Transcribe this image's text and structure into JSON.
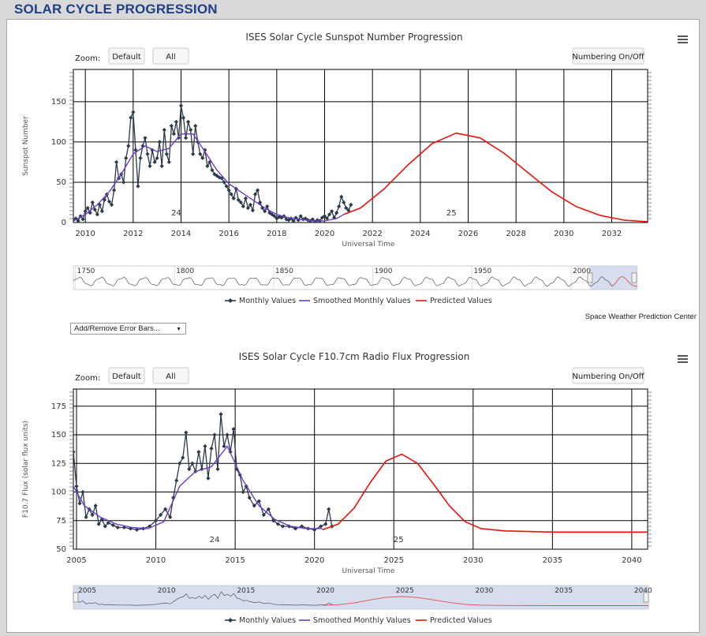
{
  "page": {
    "title": "SOLAR CYCLE PROGRESSION"
  },
  "controls": {
    "zoom_label": "Zoom:",
    "zoom_default": "Default",
    "zoom_all": "All",
    "numbering_toggle": "Numbering On/Off",
    "error_bars_select": "Add/Remove Error Bars...",
    "menu_icon": "hamburger-menu-icon"
  },
  "credit": "Space Weather Prediction Center",
  "legend": {
    "monthly": "Monthly Values",
    "smoothed": "Smoothed Monthly Values",
    "predicted": "Predicted Values"
  },
  "colors": {
    "monthly": "#2b3a4a",
    "smoothed": "#6a3ccf",
    "predicted": "#e8130b",
    "navigator_mask": "#c7d2ea"
  },
  "chart_data": [
    {
      "type": "line",
      "title": "ISES Solar Cycle Sunspot Number Progression",
      "xlabel": "Universal Time",
      "ylabel": "Sunspot Number",
      "xlim": [
        2009.5,
        2033.5
      ],
      "ylim": [
        0,
        190
      ],
      "x_ticks": [
        2010,
        2012,
        2014,
        2016,
        2018,
        2020,
        2022,
        2024,
        2026,
        2028,
        2030,
        2032
      ],
      "y_ticks": [
        0,
        50,
        100,
        150
      ],
      "cycle_labels": [
        {
          "x": 2013.8,
          "text": "24"
        },
        {
          "x": 2025.3,
          "text": "25"
        }
      ],
      "series": [
        {
          "name": "Monthly Values",
          "x": [
            2009.5,
            2009.6,
            2009.7,
            2009.8,
            2009.9,
            2010.0,
            2010.1,
            2010.2,
            2010.3,
            2010.4,
            2010.5,
            2010.6,
            2010.7,
            2010.8,
            2010.9,
            2011.0,
            2011.1,
            2011.2,
            2011.3,
            2011.4,
            2011.5,
            2011.6,
            2011.7,
            2011.8,
            2011.9,
            2012.0,
            2012.1,
            2012.2,
            2012.3,
            2012.4,
            2012.5,
            2012.6,
            2012.7,
            2012.8,
            2012.9,
            2013.0,
            2013.1,
            2013.2,
            2013.3,
            2013.4,
            2013.5,
            2013.6,
            2013.7,
            2013.8,
            2013.9,
            2014.0,
            2014.1,
            2014.2,
            2014.3,
            2014.4,
            2014.5,
            2014.6,
            2014.7,
            2014.8,
            2014.9,
            2015.0,
            2015.1,
            2015.2,
            2015.3,
            2015.4,
            2015.5,
            2015.6,
            2015.7,
            2015.8,
            2015.9,
            2016.0,
            2016.1,
            2016.2,
            2016.3,
            2016.4,
            2016.5,
            2016.6,
            2016.7,
            2016.8,
            2016.9,
            2017.0,
            2017.1,
            2017.2,
            2017.3,
            2017.4,
            2017.5,
            2017.6,
            2017.7,
            2017.8,
            2017.9,
            2018.0,
            2018.1,
            2018.2,
            2018.3,
            2018.4,
            2018.5,
            2018.6,
            2018.7,
            2018.8,
            2018.9,
            2019.0,
            2019.1,
            2019.2,
            2019.3,
            2019.4,
            2019.5,
            2019.6,
            2019.7,
            2019.8,
            2019.9,
            2020.0,
            2020.1,
            2020.2,
            2020.3,
            2020.4,
            2020.5,
            2020.6,
            2020.7,
            2020.8,
            2020.9,
            2021.0,
            2021.1
          ],
          "y": [
            3,
            5,
            2,
            8,
            4,
            14,
            18,
            12,
            25,
            16,
            10,
            22,
            14,
            28,
            35,
            26,
            22,
            40,
            75,
            55,
            60,
            50,
            80,
            95,
            130,
            137,
            90,
            45,
            80,
            95,
            105,
            85,
            70,
            90,
            75,
            80,
            100,
            70,
            115,
            85,
            75,
            120,
            110,
            125,
            105,
            145,
            130,
            105,
            125,
            115,
            85,
            120,
            100,
            85,
            80,
            90,
            70,
            75,
            65,
            60,
            58,
            56,
            55,
            50,
            45,
            40,
            35,
            30,
            42,
            28,
            25,
            20,
            30,
            18,
            22,
            15,
            35,
            40,
            25,
            18,
            14,
            20,
            12,
            10,
            8,
            5,
            7,
            6,
            8,
            4,
            3,
            5,
            2,
            6,
            3,
            8,
            4,
            5,
            3,
            2,
            4,
            1,
            3,
            2,
            6,
            8,
            5,
            10,
            14,
            6,
            12,
            20,
            32,
            25,
            18,
            15,
            22
          ]
        },
        {
          "name": "Smoothed Monthly Values",
          "x": [
            2009.5,
            2010.0,
            2010.5,
            2011.0,
            2011.5,
            2012.0,
            2012.5,
            2013.0,
            2013.5,
            2014.0,
            2014.5,
            2015.0,
            2015.5,
            2016.0,
            2016.5,
            2017.0,
            2017.5,
            2018.0,
            2018.5,
            2019.0,
            2019.5,
            2020.0,
            2020.5,
            2020.8
          ],
          "y": [
            2,
            10,
            22,
            38,
            60,
            85,
            95,
            88,
            92,
            110,
            110,
            88,
            65,
            48,
            38,
            28,
            18,
            10,
            6,
            4,
            2,
            2,
            5,
            10
          ]
        },
        {
          "name": "Predicted Values",
          "x": [
            2020.8,
            2021.5,
            2022.5,
            2023.5,
            2024.5,
            2025.5,
            2026.5,
            2027.5,
            2028.5,
            2029.5,
            2030.5,
            2031.5,
            2032.5,
            2033.5
          ],
          "y": [
            10,
            18,
            42,
            72,
            98,
            111,
            105,
            86,
            62,
            38,
            20,
            9,
            3,
            1
          ]
        }
      ],
      "navigator": {
        "ticks": [
          1750,
          1800,
          1850,
          1900,
          1950,
          2000
        ],
        "range": [
          1749,
          2033
        ],
        "selected": [
          2009.5,
          2033.5
        ]
      }
    },
    {
      "type": "line",
      "title": "ISES Solar Cycle F10.7cm Radio Flux Progression",
      "xlabel": "Universal Time",
      "ylabel": "F10.7 Flux (solar flux units)",
      "xlim": [
        2004.8,
        2041
      ],
      "ylim": [
        50,
        190
      ],
      "x_ticks": [
        2005,
        2010,
        2015,
        2020,
        2025,
        2030,
        2035,
        2040
      ],
      "y_ticks": [
        50,
        75,
        100,
        125,
        150,
        175
      ],
      "cycle_labels": [
        {
          "x": 2013.7,
          "text": "24"
        },
        {
          "x": 2025.3,
          "text": "25"
        }
      ],
      "series": [
        {
          "name": "Monthly Values",
          "x": [
            2004.8,
            2005.0,
            2005.2,
            2005.4,
            2005.6,
            2005.8,
            2006.0,
            2006.2,
            2006.4,
            2006.6,
            2006.8,
            2007.0,
            2007.3,
            2007.6,
            2008.0,
            2008.4,
            2008.8,
            2009.2,
            2009.6,
            2010.0,
            2010.3,
            2010.6,
            2010.9,
            2011.1,
            2011.3,
            2011.5,
            2011.7,
            2011.9,
            2012.1,
            2012.3,
            2012.5,
            2012.7,
            2012.9,
            2013.1,
            2013.3,
            2013.5,
            2013.7,
            2013.9,
            2014.1,
            2014.3,
            2014.5,
            2014.7,
            2014.9,
            2015.1,
            2015.3,
            2015.5,
            2015.7,
            2015.9,
            2016.2,
            2016.5,
            2016.8,
            2017.1,
            2017.4,
            2017.7,
            2018.0,
            2018.4,
            2018.8,
            2019.2,
            2019.6,
            2020.0,
            2020.4,
            2020.7,
            2020.9,
            2021.1
          ],
          "y": [
            135,
            105,
            90,
            100,
            78,
            85,
            80,
            88,
            72,
            76,
            70,
            73,
            71,
            69,
            69,
            68,
            67,
            68,
            70,
            75,
            80,
            85,
            78,
            95,
            110,
            125,
            130,
            152,
            120,
            125,
            118,
            135,
            120,
            140,
            112,
            138,
            150,
            120,
            168,
            140,
            150,
            135,
            155,
            120,
            115,
            100,
            105,
            95,
            88,
            92,
            80,
            85,
            75,
            72,
            70,
            70,
            68,
            70,
            68,
            67,
            70,
            72,
            85,
            70
          ]
        },
        {
          "name": "Smoothed Monthly Values",
          "x": [
            2004.8,
            2005.5,
            2006.5,
            2007.5,
            2008.5,
            2009.5,
            2010.5,
            2011.5,
            2012.5,
            2013.5,
            2014.5,
            2015.5,
            2016.5,
            2017.5,
            2018.5,
            2019.5,
            2020.5
          ],
          "y": [
            105,
            88,
            78,
            72,
            69,
            68,
            74,
            105,
            118,
            122,
            140,
            110,
            88,
            76,
            70,
            68,
            68
          ]
        },
        {
          "name": "Predicted Values",
          "x": [
            2020.5,
            2021.5,
            2022.5,
            2023.5,
            2024.5,
            2025.5,
            2026.5,
            2027.5,
            2028.5,
            2029.5,
            2030.5,
            2032.0,
            2035.0,
            2038.0,
            2041.0
          ],
          "y": [
            67,
            72,
            86,
            108,
            127,
            133,
            125,
            107,
            88,
            74,
            68,
            66,
            65,
            65,
            65
          ]
        }
      ],
      "navigator": {
        "ticks": [
          2005,
          2010,
          2015,
          2020,
          2025,
          2030,
          2035,
          2040
        ],
        "range": [
          2004.8,
          2041
        ],
        "selected": [
          2004.8,
          2041
        ]
      }
    }
  ]
}
